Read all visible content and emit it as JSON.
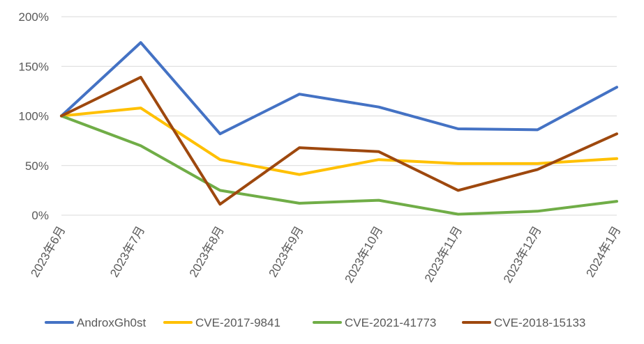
{
  "chart_data": {
    "type": "line",
    "title": "",
    "xlabel": "",
    "ylabel": "",
    "categories": [
      "2023年6月",
      "2023年7月",
      "2023年8月",
      "2023年9月",
      "2023年10月",
      "2023年11月",
      "2023年12月",
      "2024年1月"
    ],
    "y_ticks": [
      "0%",
      "50%",
      "100%",
      "150%",
      "200%"
    ],
    "ylim": [
      0,
      200
    ],
    "y_unit": "%",
    "grid": true,
    "legend_position": "bottom",
    "series": [
      {
        "name": "AndroxGh0st",
        "color": "#4472C4",
        "values": [
          100,
          174,
          82,
          122,
          109,
          87,
          86,
          129
        ]
      },
      {
        "name": "CVE-2017-9841",
        "color": "#FFC000",
        "values": [
          100,
          108,
          56,
          41,
          56,
          52,
          52,
          57
        ]
      },
      {
        "name": "CVE-2021-41773",
        "color": "#70AD47",
        "values": [
          100,
          70,
          25,
          12,
          15,
          1,
          4,
          14
        ]
      },
      {
        "name": "CVE-2018-15133",
        "color": "#9E480E",
        "values": [
          100,
          139,
          11,
          68,
          64,
          25,
          46,
          82
        ]
      }
    ]
  }
}
